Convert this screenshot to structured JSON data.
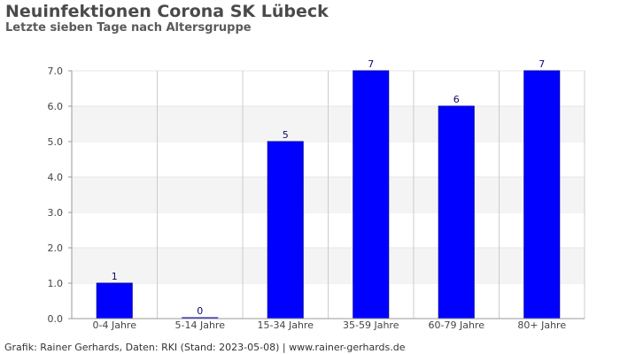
{
  "header": {
    "title": "Neuinfektionen Corona SK Lübeck",
    "subtitle": "Letzte sieben Tage nach Altersgruppe"
  },
  "footer": {
    "credit": "Grafik: Rainer Gerhards, Daten: RKI (Stand: 2023-05-08) | www.rainer-gerhards.de"
  },
  "colors": {
    "bar": "#0000ff",
    "bar_stroke": "#0000aa",
    "band": "#f4f4f4",
    "grid": "#cccccc",
    "axis": "#999999"
  },
  "chart_data": {
    "type": "bar",
    "title": "Neuinfektionen Corona SK Lübeck",
    "subtitle": "Letzte sieben Tage nach Altersgruppe",
    "categories": [
      "0-4 Jahre",
      "5-14 Jahre",
      "15-34 Jahre",
      "35-59 Jahre",
      "60-79 Jahre",
      "80+ Jahre"
    ],
    "values": [
      1,
      0,
      5,
      7,
      6,
      7
    ],
    "data_labels": [
      "1",
      "0",
      "5",
      "7",
      "6",
      "7"
    ],
    "xlabel": "",
    "ylabel": "",
    "ylim": [
      0,
      7
    ],
    "yticks": [
      "0.0",
      "1.0",
      "2.0",
      "3.0",
      "4.0",
      "5.0",
      "6.0",
      "7.0"
    ],
    "grid": true,
    "legend": "none"
  }
}
